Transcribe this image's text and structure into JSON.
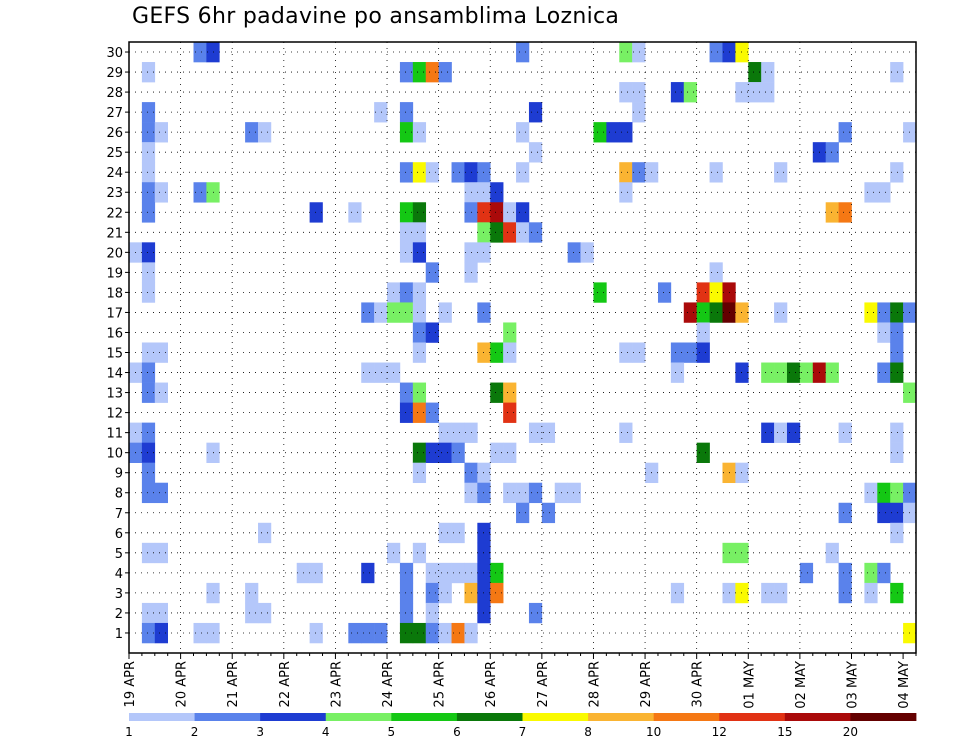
{
  "chart_data": {
    "type": "heatmap",
    "title": "GEFS 6hr padavine po ansamblima Loznica",
    "xlabel": "",
    "ylabel": "",
    "y_range": [
      1,
      30
    ],
    "y_ticks": [
      1,
      2,
      3,
      4,
      5,
      6,
      7,
      8,
      9,
      10,
      11,
      12,
      13,
      14,
      15,
      16,
      17,
      18,
      19,
      20,
      21,
      22,
      23,
      24,
      25,
      26,
      27,
      28,
      29,
      30
    ],
    "x_steps_per_day": 4,
    "x_total_steps": 61,
    "x_tick_labels": [
      "19 APR",
      "20 APR",
      "21 APR",
      "22 APR",
      "23 APR",
      "24 APR",
      "25 APR",
      "26 APR",
      "27 APR",
      "28 APR",
      "29 APR",
      "30 APR",
      "01 MAY",
      "02 MAY",
      "03 MAY",
      "04 MAY"
    ],
    "grid": "dotted",
    "legend_position": "bottom",
    "colorbar": {
      "colors": [
        "#b4c7fa",
        "#5a82eb",
        "#1e3cd2",
        "#78f064",
        "#14c814",
        "#0a780a",
        "#fafa00",
        "#fab432",
        "#f57814",
        "#e13214",
        "#aa0a0a",
        "#640000"
      ],
      "labels": [
        "1",
        "2",
        "3",
        "4",
        "5",
        "6",
        "7",
        "8",
        "10",
        "12",
        "15",
        "20",
        ""
      ]
    },
    "cells": [
      [
        30,
        5,
        2
      ],
      [
        30,
        6,
        3
      ],
      [
        30,
        30,
        2
      ],
      [
        30,
        38,
        4
      ],
      [
        30,
        39,
        1
      ],
      [
        30,
        45,
        2
      ],
      [
        30,
        46,
        3
      ],
      [
        30,
        47,
        7
      ],
      [
        29,
        1,
        1
      ],
      [
        29,
        21,
        2
      ],
      [
        29,
        22,
        5
      ],
      [
        29,
        23,
        9
      ],
      [
        29,
        24,
        2
      ],
      [
        29,
        48,
        6
      ],
      [
        29,
        49,
        1
      ],
      [
        29,
        59,
        1
      ],
      [
        28,
        38,
        1
      ],
      [
        28,
        39,
        1
      ],
      [
        28,
        42,
        3
      ],
      [
        28,
        43,
        4
      ],
      [
        28,
        47,
        1
      ],
      [
        28,
        48,
        1
      ],
      [
        28,
        49,
        1
      ],
      [
        27,
        1,
        2
      ],
      [
        27,
        19,
        1
      ],
      [
        27,
        21,
        2
      ],
      [
        27,
        31,
        3
      ],
      [
        27,
        39,
        1
      ],
      [
        26,
        1,
        2
      ],
      [
        26,
        2,
        1
      ],
      [
        26,
        9,
        2
      ],
      [
        26,
        10,
        1
      ],
      [
        26,
        21,
        5
      ],
      [
        26,
        22,
        1
      ],
      [
        26,
        30,
        1
      ],
      [
        26,
        36,
        5
      ],
      [
        26,
        37,
        3
      ],
      [
        26,
        38,
        3
      ],
      [
        26,
        55,
        2
      ],
      [
        26,
        60,
        1
      ],
      [
        25,
        1,
        1
      ],
      [
        25,
        31,
        1
      ],
      [
        25,
        53,
        3
      ],
      [
        25,
        54,
        2
      ],
      [
        24,
        1,
        1
      ],
      [
        24,
        21,
        2
      ],
      [
        24,
        22,
        7
      ],
      [
        24,
        23,
        1
      ],
      [
        24,
        25,
        2
      ],
      [
        24,
        26,
        3
      ],
      [
        24,
        27,
        2
      ],
      [
        24,
        30,
        1
      ],
      [
        24,
        38,
        8
      ],
      [
        24,
        39,
        2
      ],
      [
        24,
        40,
        1
      ],
      [
        24,
        45,
        1
      ],
      [
        24,
        50,
        1
      ],
      [
        24,
        59,
        1
      ],
      [
        23,
        1,
        2
      ],
      [
        23,
        2,
        1
      ],
      [
        23,
        5,
        2
      ],
      [
        23,
        6,
        4
      ],
      [
        23,
        26,
        1
      ],
      [
        23,
        27,
        1
      ],
      [
        23,
        28,
        3
      ],
      [
        23,
        38,
        1
      ],
      [
        23,
        57,
        1
      ],
      [
        23,
        58,
        1
      ],
      [
        22,
        1,
        2
      ],
      [
        22,
        14,
        3
      ],
      [
        22,
        17,
        1
      ],
      [
        22,
        21,
        5
      ],
      [
        22,
        22,
        6
      ],
      [
        22,
        26,
        2
      ],
      [
        22,
        27,
        10
      ],
      [
        22,
        28,
        11
      ],
      [
        22,
        29,
        1
      ],
      [
        22,
        30,
        3
      ],
      [
        22,
        54,
        8
      ],
      [
        22,
        55,
        9
      ],
      [
        21,
        21,
        1
      ],
      [
        21,
        22,
        1
      ],
      [
        21,
        27,
        4
      ],
      [
        21,
        28,
        6
      ],
      [
        21,
        29,
        10
      ],
      [
        21,
        30,
        1
      ],
      [
        21,
        31,
        2
      ],
      [
        20,
        0,
        1
      ],
      [
        20,
        1,
        3
      ],
      [
        20,
        21,
        1
      ],
      [
        20,
        22,
        3
      ],
      [
        20,
        26,
        1
      ],
      [
        20,
        27,
        1
      ],
      [
        20,
        34,
        2
      ],
      [
        20,
        35,
        1
      ],
      [
        19,
        1,
        1
      ],
      [
        19,
        23,
        2
      ],
      [
        19,
        26,
        1
      ],
      [
        19,
        45,
        1
      ],
      [
        18,
        1,
        1
      ],
      [
        18,
        20,
        1
      ],
      [
        18,
        21,
        2
      ],
      [
        18,
        22,
        1
      ],
      [
        18,
        36,
        5
      ],
      [
        18,
        41,
        2
      ],
      [
        18,
        44,
        10
      ],
      [
        18,
        45,
        7
      ],
      [
        18,
        46,
        11
      ],
      [
        17,
        18,
        2
      ],
      [
        17,
        19,
        1
      ],
      [
        17,
        20,
        4
      ],
      [
        17,
        21,
        4
      ],
      [
        17,
        22,
        1
      ],
      [
        17,
        24,
        1
      ],
      [
        17,
        27,
        2
      ],
      [
        17,
        43,
        11
      ],
      [
        17,
        44,
        5
      ],
      [
        17,
        45,
        6
      ],
      [
        17,
        46,
        12
      ],
      [
        17,
        47,
        8
      ],
      [
        17,
        50,
        1
      ],
      [
        17,
        57,
        7
      ],
      [
        17,
        58,
        2
      ],
      [
        17,
        59,
        6
      ],
      [
        17,
        60,
        2
      ],
      [
        16,
        22,
        2
      ],
      [
        16,
        23,
        3
      ],
      [
        16,
        29,
        4
      ],
      [
        16,
        44,
        1
      ],
      [
        16,
        58,
        1
      ],
      [
        16,
        59,
        2
      ],
      [
        15,
        1,
        1
      ],
      [
        15,
        2,
        1
      ],
      [
        15,
        22,
        1
      ],
      [
        15,
        27,
        8
      ],
      [
        15,
        28,
        5
      ],
      [
        15,
        29,
        1
      ],
      [
        15,
        38,
        1
      ],
      [
        15,
        39,
        1
      ],
      [
        15,
        42,
        2
      ],
      [
        15,
        43,
        2
      ],
      [
        15,
        44,
        3
      ],
      [
        15,
        59,
        2
      ],
      [
        14,
        0,
        1
      ],
      [
        14,
        1,
        2
      ],
      [
        14,
        18,
        1
      ],
      [
        14,
        19,
        1
      ],
      [
        14,
        20,
        1
      ],
      [
        14,
        42,
        1
      ],
      [
        14,
        47,
        3
      ],
      [
        14,
        49,
        4
      ],
      [
        14,
        50,
        4
      ],
      [
        14,
        51,
        6
      ],
      [
        14,
        52,
        4
      ],
      [
        14,
        53,
        11
      ],
      [
        14,
        54,
        4
      ],
      [
        14,
        58,
        2
      ],
      [
        14,
        59,
        6
      ],
      [
        13,
        1,
        2
      ],
      [
        13,
        2,
        1
      ],
      [
        13,
        21,
        2
      ],
      [
        13,
        22,
        4
      ],
      [
        13,
        28,
        6
      ],
      [
        13,
        29,
        8
      ],
      [
        13,
        60,
        4
      ],
      [
        12,
        21,
        3
      ],
      [
        12,
        22,
        9
      ],
      [
        12,
        23,
        2
      ],
      [
        12,
        29,
        10
      ],
      [
        11,
        0,
        1
      ],
      [
        11,
        1,
        2
      ],
      [
        11,
        24,
        1
      ],
      [
        11,
        25,
        1
      ],
      [
        11,
        26,
        1
      ],
      [
        11,
        31,
        1
      ],
      [
        11,
        32,
        1
      ],
      [
        11,
        38,
        1
      ],
      [
        11,
        49,
        3
      ],
      [
        11,
        50,
        1
      ],
      [
        11,
        51,
        3
      ],
      [
        11,
        55,
        1
      ],
      [
        11,
        59,
        1
      ],
      [
        10,
        0,
        2
      ],
      [
        10,
        1,
        3
      ],
      [
        10,
        6,
        1
      ],
      [
        10,
        22,
        6
      ],
      [
        10,
        23,
        3
      ],
      [
        10,
        24,
        3
      ],
      [
        10,
        25,
        2
      ],
      [
        10,
        28,
        1
      ],
      [
        10,
        29,
        1
      ],
      [
        10,
        44,
        6
      ],
      [
        10,
        59,
        1
      ],
      [
        9,
        1,
        2
      ],
      [
        9,
        22,
        1
      ],
      [
        9,
        26,
        2
      ],
      [
        9,
        27,
        1
      ],
      [
        9,
        40,
        1
      ],
      [
        9,
        46,
        8
      ],
      [
        9,
        47,
        1
      ],
      [
        8,
        1,
        2
      ],
      [
        8,
        2,
        2
      ],
      [
        8,
        26,
        1
      ],
      [
        8,
        27,
        2
      ],
      [
        8,
        29,
        1
      ],
      [
        8,
        30,
        1
      ],
      [
        8,
        31,
        2
      ],
      [
        8,
        33,
        1
      ],
      [
        8,
        34,
        1
      ],
      [
        8,
        57,
        1
      ],
      [
        8,
        58,
        5
      ],
      [
        8,
        59,
        4
      ],
      [
        8,
        60,
        2
      ],
      [
        7,
        30,
        2
      ],
      [
        7,
        32,
        2
      ],
      [
        7,
        55,
        2
      ],
      [
        7,
        58,
        3
      ],
      [
        7,
        59,
        3
      ],
      [
        7,
        60,
        1
      ],
      [
        6,
        10,
        1
      ],
      [
        6,
        24,
        1
      ],
      [
        6,
        25,
        1
      ],
      [
        6,
        27,
        3
      ],
      [
        6,
        59,
        1
      ],
      [
        5,
        1,
        1
      ],
      [
        5,
        2,
        1
      ],
      [
        5,
        20,
        1
      ],
      [
        5,
        22,
        1
      ],
      [
        5,
        27,
        3
      ],
      [
        5,
        46,
        4
      ],
      [
        5,
        47,
        4
      ],
      [
        5,
        54,
        1
      ],
      [
        4,
        13,
        1
      ],
      [
        4,
        14,
        1
      ],
      [
        4,
        18,
        3
      ],
      [
        4,
        21,
        2
      ],
      [
        4,
        23,
        1
      ],
      [
        4,
        24,
        1
      ],
      [
        4,
        25,
        1
      ],
      [
        4,
        26,
        1
      ],
      [
        4,
        27,
        3
      ],
      [
        4,
        28,
        5
      ],
      [
        4,
        52,
        2
      ],
      [
        4,
        55,
        2
      ],
      [
        4,
        57,
        4
      ],
      [
        4,
        58,
        2
      ],
      [
        3,
        6,
        1
      ],
      [
        3,
        9,
        1
      ],
      [
        3,
        21,
        2
      ],
      [
        3,
        23,
        2
      ],
      [
        3,
        24,
        1
      ],
      [
        3,
        26,
        8
      ],
      [
        3,
        27,
        3
      ],
      [
        3,
        28,
        9
      ],
      [
        3,
        42,
        1
      ],
      [
        3,
        46,
        1
      ],
      [
        3,
        47,
        7
      ],
      [
        3,
        49,
        1
      ],
      [
        3,
        50,
        1
      ],
      [
        3,
        55,
        2
      ],
      [
        3,
        57,
        1
      ],
      [
        3,
        59,
        5
      ],
      [
        2,
        1,
        1
      ],
      [
        2,
        2,
        1
      ],
      [
        2,
        9,
        1
      ],
      [
        2,
        10,
        1
      ],
      [
        2,
        21,
        2
      ],
      [
        2,
        23,
        1
      ],
      [
        2,
        27,
        3
      ],
      [
        2,
        31,
        2
      ],
      [
        1,
        1,
        2
      ],
      [
        1,
        2,
        3
      ],
      [
        1,
        5,
        1
      ],
      [
        1,
        6,
        1
      ],
      [
        1,
        14,
        1
      ],
      [
        1,
        17,
        2
      ],
      [
        1,
        18,
        2
      ],
      [
        1,
        19,
        2
      ],
      [
        1,
        21,
        6
      ],
      [
        1,
        22,
        6
      ],
      [
        1,
        23,
        2
      ],
      [
        1,
        24,
        1
      ],
      [
        1,
        25,
        9
      ],
      [
        1,
        26,
        1
      ],
      [
        1,
        60,
        7
      ]
    ]
  }
}
